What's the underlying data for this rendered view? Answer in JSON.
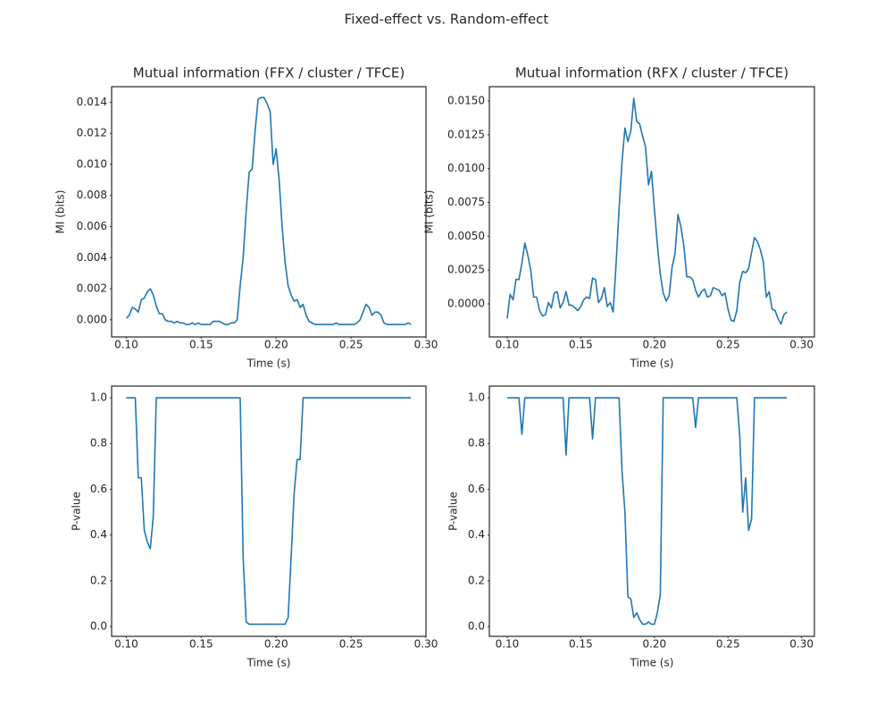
{
  "title": "Fixed-effect vs. Random-effect",
  "chart_data": [
    {
      "type": "line",
      "title": "Mutual information (FFX / cluster / TFCE)",
      "x_label": "Time (s)",
      "y_label": "MI (bits)",
      "color": "#1f77b4",
      "x": [
        0.1,
        0.102,
        0.104,
        0.106,
        0.108,
        0.11,
        0.112,
        0.114,
        0.116,
        0.118,
        0.12,
        0.122,
        0.124,
        0.126,
        0.128,
        0.13,
        0.132,
        0.134,
        0.136,
        0.138,
        0.14,
        0.142,
        0.144,
        0.146,
        0.148,
        0.15,
        0.152,
        0.154,
        0.156,
        0.158,
        0.16,
        0.162,
        0.164,
        0.166,
        0.168,
        0.17,
        0.172,
        0.174,
        0.176,
        0.178,
        0.18,
        0.182,
        0.184,
        0.186,
        0.188,
        0.19,
        0.192,
        0.194,
        0.196,
        0.198,
        0.2,
        0.202,
        0.204,
        0.206,
        0.208,
        0.21,
        0.212,
        0.214,
        0.216,
        0.218,
        0.22,
        0.222,
        0.224,
        0.226,
        0.228,
        0.23,
        0.232,
        0.234,
        0.236,
        0.238,
        0.24,
        0.242,
        0.244,
        0.246,
        0.248,
        0.25,
        0.252,
        0.254,
        0.256,
        0.258,
        0.26,
        0.262,
        0.264,
        0.266,
        0.268,
        0.27,
        0.272,
        0.274,
        0.276,
        0.278,
        0.28,
        0.282,
        0.284,
        0.286,
        0.288,
        0.29
      ],
      "values": [
        0.0001,
        0.0003,
        0.0008,
        0.0007,
        0.0005,
        0.0013,
        0.0014,
        0.0018,
        0.002,
        0.0016,
        0.0009,
        0.0004,
        0.0004,
        0,
        -0.0001,
        -0.0001,
        -0.0002,
        -0.0001,
        -0.0002,
        -0.0002,
        -0.0003,
        -0.0003,
        -0.0002,
        -0.0003,
        -0.0002,
        -0.0003,
        -0.0003,
        -0.0003,
        -0.0003,
        -0.0001,
        -0.0001,
        -0.0001,
        -0.0002,
        -0.0003,
        -0.0003,
        -0.0002,
        -0.0002,
        0,
        0.0022,
        0.004,
        0.007,
        0.0095,
        0.0097,
        0.0122,
        0.0142,
        0.0143,
        0.0143,
        0.0139,
        0.0134,
        0.01,
        0.011,
        0.009,
        0.006,
        0.0037,
        0.0022,
        0.0016,
        0.0012,
        0.0013,
        0.0008,
        0.001,
        0.0003,
        -0.0001,
        -0.0002,
        -0.0003,
        -0.0003,
        -0.0003,
        -0.0003,
        -0.0003,
        -0.0003,
        -0.0003,
        -0.0002,
        -0.0003,
        -0.0003,
        -0.0003,
        -0.0003,
        -0.0003,
        -0.0003,
        -0.0002,
        0,
        0.0005,
        0.001,
        0.0008,
        0.0003,
        0.0005,
        0.0005,
        0.0003,
        -0.0002,
        -0.0003,
        -0.0003,
        -0.0003,
        -0.0003,
        -0.0003,
        -0.0003,
        -0.0003,
        -0.0002,
        -0.0003
      ],
      "xlim": [
        0.0902,
        0.3
      ],
      "ylim": [
        -0.0011,
        0.015
      ],
      "xticks": [
        {
          "value": 0.1,
          "label": "0.10"
        },
        {
          "value": 0.15,
          "label": "0.15"
        },
        {
          "value": 0.2,
          "label": "0.20"
        },
        {
          "value": 0.25,
          "label": "0.25"
        },
        {
          "value": 0.3,
          "label": "0.30"
        }
      ],
      "yticks": [
        {
          "value": 0,
          "label": "0.000"
        },
        {
          "value": 0.002,
          "label": "0.002"
        },
        {
          "value": 0.004,
          "label": "0.004"
        },
        {
          "value": 0.006,
          "label": "0.006"
        },
        {
          "value": 0.008,
          "label": "0.008"
        },
        {
          "value": 0.01,
          "label": "0.010"
        },
        {
          "value": 0.012,
          "label": "0.012"
        },
        {
          "value": 0.014,
          "label": "0.014"
        }
      ]
    },
    {
      "type": "line",
      "title": "Mutual information (RFX / cluster / TFCE)",
      "x_label": "Time (s)",
      "y_label": "MI (bits)",
      "color": "#1f77b4",
      "x": [
        0.1,
        0.102,
        0.104,
        0.106,
        0.108,
        0.11,
        0.112,
        0.114,
        0.116,
        0.118,
        0.12,
        0.122,
        0.124,
        0.126,
        0.128,
        0.13,
        0.132,
        0.134,
        0.136,
        0.138,
        0.14,
        0.142,
        0.144,
        0.146,
        0.148,
        0.15,
        0.152,
        0.154,
        0.156,
        0.158,
        0.16,
        0.162,
        0.164,
        0.166,
        0.168,
        0.17,
        0.172,
        0.174,
        0.176,
        0.178,
        0.18,
        0.182,
        0.184,
        0.186,
        0.188,
        0.19,
        0.192,
        0.194,
        0.196,
        0.198,
        0.2,
        0.202,
        0.204,
        0.206,
        0.208,
        0.21,
        0.212,
        0.214,
        0.216,
        0.218,
        0.22,
        0.222,
        0.224,
        0.226,
        0.228,
        0.23,
        0.232,
        0.234,
        0.236,
        0.238,
        0.24,
        0.242,
        0.244,
        0.246,
        0.248,
        0.25,
        0.252,
        0.254,
        0.256,
        0.258,
        0.26,
        0.262,
        0.264,
        0.266,
        0.268,
        0.27,
        0.272,
        0.274,
        0.276,
        0.278,
        0.28,
        0.282,
        0.284,
        0.286,
        0.288,
        0.29
      ],
      "values": [
        -0.0011,
        0.0007,
        0.0003,
        0.0018,
        0.0018,
        0.003,
        0.0045,
        0.0036,
        0.0025,
        0.0005,
        0.0005,
        -0.0005,
        -0.0009,
        -0.0008,
        0.0001,
        -0.0003,
        0.0008,
        0.0009,
        -0.0003,
        0.0001,
        0.0009,
        -0.0001,
        -0.0001,
        -0.0003,
        -0.0005,
        -0.0002,
        0.0003,
        0.0005,
        0.0004,
        0.0019,
        0.0018,
        0.0001,
        0.0004,
        0.0012,
        -0.0002,
        0.0001,
        -0.0006,
        0.003,
        0.007,
        0.0105,
        0.013,
        0.012,
        0.0128,
        0.0152,
        0.0135,
        0.0133,
        0.0124,
        0.0116,
        0.0088,
        0.0098,
        0.007,
        0.0044,
        0.0022,
        0.0008,
        0.0002,
        0.0006,
        0.0027,
        0.0037,
        0.0066,
        0.0057,
        0.0043,
        0.002,
        0.002,
        0.0018,
        0.001,
        0.0005,
        0.0009,
        0.0011,
        0.0005,
        0.0006,
        0.0012,
        0.0011,
        0.001,
        0.0006,
        0.0008,
        -0.0004,
        -0.0012,
        -0.0013,
        -0.0005,
        0.0016,
        0.0024,
        0.0023,
        0.0026,
        0.0038,
        0.0049,
        0.0046,
        0.004,
        0.0031,
        0.0005,
        0.0009,
        -0.0004,
        -0.0005,
        -0.0011,
        -0.0015,
        -0.0008,
        -0.0006
      ],
      "xlim": [
        0.0879,
        0.3087
      ],
      "ylim": [
        -0.00245,
        0.01606
      ],
      "xticks": [
        {
          "value": 0.1,
          "label": "0.10"
        },
        {
          "value": 0.15,
          "label": "0.15"
        },
        {
          "value": 0.2,
          "label": "0.20"
        },
        {
          "value": 0.25,
          "label": "0.25"
        },
        {
          "value": 0.3,
          "label": "0.30"
        }
      ],
      "yticks": [
        {
          "value": 0,
          "label": "0.0000"
        },
        {
          "value": 0.0025,
          "label": "0.0025"
        },
        {
          "value": 0.005,
          "label": "0.0050"
        },
        {
          "value": 0.0075,
          "label": "0.0075"
        },
        {
          "value": 0.01,
          "label": "0.0100"
        },
        {
          "value": 0.0125,
          "label": "0.0125"
        },
        {
          "value": 0.015,
          "label": "0.0150"
        }
      ]
    },
    {
      "type": "line",
      "x_label": "Time (s)",
      "y_label": "P-value",
      "color": "#1f77b4",
      "x": [
        0.1,
        0.102,
        0.104,
        0.106,
        0.108,
        0.11,
        0.112,
        0.114,
        0.116,
        0.118,
        0.12,
        0.122,
        0.124,
        0.126,
        0.128,
        0.13,
        0.132,
        0.134,
        0.136,
        0.138,
        0.14,
        0.142,
        0.144,
        0.146,
        0.148,
        0.15,
        0.152,
        0.154,
        0.156,
        0.158,
        0.16,
        0.162,
        0.164,
        0.166,
        0.168,
        0.17,
        0.172,
        0.174,
        0.176,
        0.178,
        0.18,
        0.182,
        0.184,
        0.186,
        0.188,
        0.19,
        0.192,
        0.194,
        0.196,
        0.198,
        0.2,
        0.202,
        0.204,
        0.206,
        0.208,
        0.21,
        0.212,
        0.214,
        0.216,
        0.218,
        0.22,
        0.222,
        0.224,
        0.226,
        0.228,
        0.23,
        0.232,
        0.234,
        0.236,
        0.238,
        0.24,
        0.242,
        0.244,
        0.246,
        0.248,
        0.25,
        0.252,
        0.254,
        0.256,
        0.258,
        0.26,
        0.262,
        0.264,
        0.266,
        0.268,
        0.27,
        0.272,
        0.274,
        0.276,
        0.278,
        0.28,
        0.282,
        0.284,
        0.286,
        0.288,
        0.29
      ],
      "values": [
        1,
        1,
        1,
        1,
        0.65,
        0.65,
        0.42,
        0.37,
        0.34,
        0.48,
        1,
        1,
        1,
        1,
        1,
        1,
        1,
        1,
        1,
        1,
        1,
        1,
        1,
        1,
        1,
        1,
        1,
        1,
        1,
        1,
        1,
        1,
        1,
        1,
        1,
        1,
        1,
        1,
        1,
        0.3,
        0.02,
        0.01,
        0.01,
        0.01,
        0.01,
        0.01,
        0.01,
        0.01,
        0.01,
        0.01,
        0.01,
        0.01,
        0.01,
        0.01,
        0.04,
        0.3,
        0.58,
        0.73,
        0.73,
        1,
        1,
        1,
        1,
        1,
        1,
        1,
        1,
        1,
        1,
        1,
        1,
        1,
        1,
        1,
        1,
        1,
        1,
        1,
        1,
        1,
        1,
        1,
        1,
        1,
        1,
        1,
        1,
        1,
        1,
        1,
        1,
        1,
        1,
        1,
        1,
        1
      ],
      "xlim": [
        0.0902,
        0.3
      ],
      "ylim": [
        -0.043,
        1.051
      ],
      "xticks": [
        {
          "value": 0.1,
          "label": "0.10"
        },
        {
          "value": 0.15,
          "label": "0.15"
        },
        {
          "value": 0.2,
          "label": "0.20"
        },
        {
          "value": 0.25,
          "label": "0.25"
        },
        {
          "value": 0.3,
          "label": "0.30"
        }
      ],
      "yticks": [
        {
          "value": 0,
          "label": "0.0"
        },
        {
          "value": 0.2,
          "label": "0.2"
        },
        {
          "value": 0.4,
          "label": "0.4"
        },
        {
          "value": 0.6,
          "label": "0.6"
        },
        {
          "value": 0.8,
          "label": "0.8"
        },
        {
          "value": 1,
          "label": "1.0"
        }
      ]
    },
    {
      "type": "line",
      "x_label": "Time (s)",
      "y_label": "P-value",
      "color": "#1f77b4",
      "x": [
        0.1,
        0.102,
        0.104,
        0.106,
        0.108,
        0.11,
        0.112,
        0.114,
        0.116,
        0.118,
        0.12,
        0.122,
        0.124,
        0.126,
        0.128,
        0.13,
        0.132,
        0.134,
        0.136,
        0.138,
        0.14,
        0.142,
        0.144,
        0.146,
        0.148,
        0.15,
        0.152,
        0.154,
        0.156,
        0.158,
        0.16,
        0.162,
        0.164,
        0.166,
        0.168,
        0.17,
        0.172,
        0.174,
        0.176,
        0.178,
        0.18,
        0.182,
        0.184,
        0.186,
        0.188,
        0.19,
        0.192,
        0.194,
        0.196,
        0.198,
        0.2,
        0.202,
        0.204,
        0.206,
        0.208,
        0.21,
        0.212,
        0.214,
        0.216,
        0.218,
        0.22,
        0.222,
        0.224,
        0.226,
        0.228,
        0.23,
        0.232,
        0.234,
        0.236,
        0.238,
        0.24,
        0.242,
        0.244,
        0.246,
        0.248,
        0.25,
        0.252,
        0.254,
        0.256,
        0.258,
        0.26,
        0.262,
        0.264,
        0.266,
        0.268,
        0.27,
        0.272,
        0.274,
        0.276,
        0.278,
        0.28,
        0.282,
        0.284,
        0.286,
        0.288,
        0.29
      ],
      "values": [
        1,
        1,
        1,
        1,
        1,
        0.84,
        1,
        1,
        1,
        1,
        1,
        1,
        1,
        1,
        1,
        1,
        1,
        1,
        1,
        1,
        0.75,
        1,
        1,
        1,
        1,
        1,
        1,
        1,
        1,
        0.82,
        1,
        1,
        1,
        1,
        1,
        1,
        1,
        1,
        1,
        0.68,
        0.5,
        0.13,
        0.12,
        0.04,
        0.06,
        0.03,
        0.01,
        0.01,
        0.02,
        0.01,
        0.01,
        0.06,
        0.14,
        1,
        1,
        1,
        1,
        1,
        1,
        1,
        1,
        1,
        1,
        1,
        0.87,
        1,
        1,
        1,
        1,
        1,
        1,
        1,
        1,
        1,
        1,
        1,
        1,
        1,
        1,
        0.83,
        0.5,
        0.65,
        0.42,
        0.47,
        1,
        1,
        1,
        1,
        1,
        1,
        1,
        1,
        1,
        1,
        1,
        1
      ],
      "xlim": [
        0.0879,
        0.3087
      ],
      "ylim": [
        -0.043,
        1.051
      ],
      "xticks": [
        {
          "value": 0.1,
          "label": "0.10"
        },
        {
          "value": 0.15,
          "label": "0.15"
        },
        {
          "value": 0.2,
          "label": "0.20"
        },
        {
          "value": 0.25,
          "label": "0.25"
        },
        {
          "value": 0.3,
          "label": "0.30"
        }
      ],
      "yticks": [
        {
          "value": 0,
          "label": "0.0"
        },
        {
          "value": 0.2,
          "label": "0.2"
        },
        {
          "value": 0.4,
          "label": "0.4"
        },
        {
          "value": 0.6,
          "label": "0.6"
        },
        {
          "value": 0.8,
          "label": "0.8"
        },
        {
          "value": 1,
          "label": "1.0"
        }
      ]
    }
  ]
}
